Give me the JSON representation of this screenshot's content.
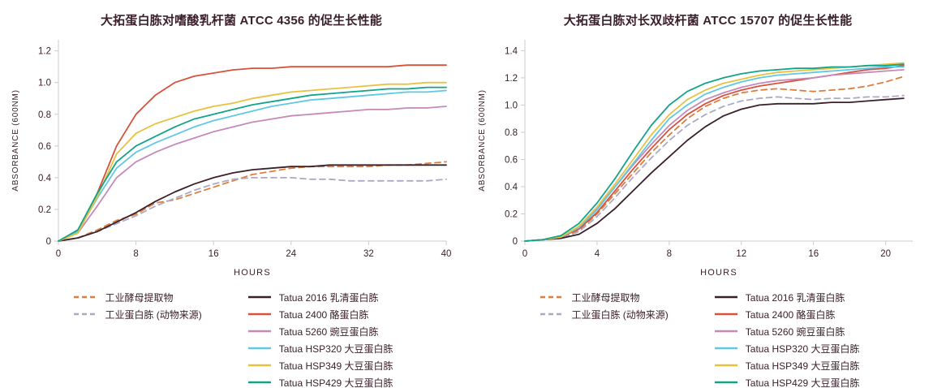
{
  "theme": {
    "background": "#ffffff",
    "text_color": "#3b202c",
    "axis_color": "#cbcbcb"
  },
  "chart_data": [
    {
      "type": "line",
      "title": "大拓蛋白胨对嗜酸乳杆菌 ATCC 4356 的促生长性能",
      "xlabel": "HOURS",
      "ylabel": "ABSORBANCE (600NM)",
      "xlim": [
        0,
        40
      ],
      "ylim": [
        0,
        1.27
      ],
      "xticks": [
        0,
        8,
        16,
        24,
        32,
        40
      ],
      "yticks": [
        0,
        0.2,
        0.4,
        0.6,
        0.8,
        1.0,
        1.2
      ],
      "grid": false,
      "legend_position": "bottom",
      "x": [
        0,
        2,
        4,
        6,
        8,
        10,
        12,
        14,
        16,
        18,
        20,
        22,
        24,
        26,
        28,
        30,
        32,
        34,
        36,
        38,
        40
      ],
      "series": [
        {
          "name": "工业酵母提取物",
          "color": "#df7e3c",
          "dash": true,
          "column": 1,
          "values": [
            0,
            0.02,
            0.07,
            0.13,
            0.17,
            0.24,
            0.26,
            0.3,
            0.34,
            0.38,
            0.42,
            0.44,
            0.46,
            0.47,
            0.47,
            0.47,
            0.47,
            0.48,
            0.48,
            0.49,
            0.5
          ]
        },
        {
          "name": "工业蛋白胨 (动物来源)",
          "color": "#aba9c6",
          "dash": true,
          "column": 1,
          "values": [
            0,
            0.02,
            0.06,
            0.11,
            0.16,
            0.22,
            0.27,
            0.32,
            0.36,
            0.39,
            0.4,
            0.4,
            0.4,
            0.39,
            0.39,
            0.38,
            0.38,
            0.38,
            0.38,
            0.38,
            0.39
          ]
        },
        {
          "name": "Tatua 2016 乳清蛋白胨",
          "color": "#3b202c",
          "dash": false,
          "column": 2,
          "values": [
            0,
            0.02,
            0.06,
            0.12,
            0.18,
            0.25,
            0.31,
            0.36,
            0.4,
            0.43,
            0.45,
            0.46,
            0.47,
            0.47,
            0.48,
            0.48,
            0.48,
            0.48,
            0.48,
            0.48,
            0.48
          ]
        },
        {
          "name": "Tatua 2400 酪蛋白胨",
          "color": "#d6523c",
          "dash": false,
          "column": 2,
          "values": [
            0,
            0.06,
            0.3,
            0.6,
            0.8,
            0.92,
            1.0,
            1.04,
            1.06,
            1.08,
            1.09,
            1.09,
            1.1,
            1.1,
            1.1,
            1.1,
            1.1,
            1.1,
            1.11,
            1.11,
            1.11
          ]
        },
        {
          "name": "Tatua 5260 豌豆蛋白胨",
          "color": "#c68ab8",
          "dash": false,
          "column": 2,
          "values": [
            0,
            0.05,
            0.22,
            0.4,
            0.5,
            0.56,
            0.61,
            0.65,
            0.69,
            0.72,
            0.75,
            0.77,
            0.79,
            0.8,
            0.81,
            0.82,
            0.83,
            0.83,
            0.84,
            0.84,
            0.85
          ]
        },
        {
          "name": "Tatua HSP320 大豆蛋白胨",
          "color": "#5ec8e5",
          "dash": false,
          "column": 2,
          "values": [
            0,
            0.06,
            0.27,
            0.46,
            0.56,
            0.62,
            0.67,
            0.72,
            0.76,
            0.79,
            0.82,
            0.85,
            0.87,
            0.89,
            0.9,
            0.91,
            0.92,
            0.93,
            0.94,
            0.94,
            0.95
          ]
        },
        {
          "name": "Tatua HSP349 大豆蛋白胨",
          "color": "#e8c23f",
          "dash": false,
          "column": 2,
          "values": [
            0,
            0.05,
            0.28,
            0.55,
            0.68,
            0.74,
            0.78,
            0.82,
            0.85,
            0.87,
            0.9,
            0.92,
            0.94,
            0.95,
            0.96,
            0.97,
            0.98,
            0.99,
            0.99,
            1.0,
            1.0
          ]
        },
        {
          "name": "Tatua HSP429 大豆蛋白胨",
          "color": "#12a48b",
          "dash": false,
          "column": 2,
          "values": [
            0,
            0.07,
            0.3,
            0.5,
            0.6,
            0.66,
            0.72,
            0.77,
            0.8,
            0.83,
            0.86,
            0.88,
            0.9,
            0.92,
            0.93,
            0.94,
            0.95,
            0.96,
            0.96,
            0.97,
            0.97
          ]
        }
      ]
    },
    {
      "type": "line",
      "title": "大拓蛋白胨对长双歧杆菌 ATCC 15707 的促生长性能",
      "xlabel": "HOURS",
      "ylabel": "ABSORBANCE (600NM)",
      "xlim": [
        0,
        21.5
      ],
      "ylim": [
        0,
        1.48
      ],
      "xticks": [
        0,
        4,
        8,
        12,
        16,
        20
      ],
      "yticks": [
        0,
        0.2,
        0.4,
        0.6,
        0.8,
        1.0,
        1.2,
        1.4
      ],
      "grid": false,
      "legend_position": "bottom",
      "x": [
        0,
        1,
        2,
        3,
        4,
        5,
        6,
        7,
        8,
        9,
        10,
        11,
        12,
        13,
        14,
        15,
        16,
        17,
        18,
        19,
        20,
        21
      ],
      "series": [
        {
          "name": "工业酵母提取物",
          "color": "#df7e3c",
          "dash": true,
          "column": 1,
          "values": [
            0,
            0.01,
            0.02,
            0.08,
            0.2,
            0.35,
            0.5,
            0.65,
            0.78,
            0.9,
            0.99,
            1.05,
            1.09,
            1.11,
            1.12,
            1.11,
            1.1,
            1.11,
            1.12,
            1.14,
            1.17,
            1.21
          ]
        },
        {
          "name": "工业蛋白胨 (动物来源)",
          "color": "#aba9c6",
          "dash": true,
          "column": 1,
          "values": [
            0,
            0.01,
            0.02,
            0.07,
            0.18,
            0.32,
            0.47,
            0.61,
            0.74,
            0.85,
            0.93,
            0.99,
            1.03,
            1.05,
            1.06,
            1.05,
            1.04,
            1.05,
            1.05,
            1.06,
            1.06,
            1.07
          ]
        },
        {
          "name": "Tatua 2016 乳清蛋白胨",
          "color": "#3b202c",
          "dash": false,
          "column": 2,
          "values": [
            0,
            0.01,
            0.02,
            0.05,
            0.13,
            0.24,
            0.37,
            0.5,
            0.62,
            0.74,
            0.84,
            0.92,
            0.97,
            1.0,
            1.01,
            1.01,
            1.01,
            1.02,
            1.02,
            1.03,
            1.04,
            1.05
          ]
        },
        {
          "name": "Tatua 2400 酪蛋白胨",
          "color": "#d6523c",
          "dash": false,
          "column": 2,
          "values": [
            0,
            0.01,
            0.03,
            0.09,
            0.21,
            0.37,
            0.53,
            0.68,
            0.82,
            0.93,
            1.01,
            1.07,
            1.11,
            1.14,
            1.16,
            1.18,
            1.2,
            1.22,
            1.24,
            1.26,
            1.27,
            1.29
          ]
        },
        {
          "name": "Tatua 5260 豌豆蛋白胨",
          "color": "#c68ab8",
          "dash": false,
          "column": 2,
          "values": [
            0,
            0.01,
            0.03,
            0.1,
            0.24,
            0.4,
            0.56,
            0.71,
            0.85,
            0.96,
            1.04,
            1.09,
            1.13,
            1.16,
            1.18,
            1.19,
            1.2,
            1.22,
            1.23,
            1.24,
            1.25,
            1.26
          ]
        },
        {
          "name": "Tatua HSP320 大豆蛋白胨",
          "color": "#5ec8e5",
          "dash": false,
          "column": 2,
          "values": [
            0,
            0.01,
            0.03,
            0.1,
            0.23,
            0.4,
            0.57,
            0.74,
            0.9,
            1.0,
            1.08,
            1.13,
            1.17,
            1.2,
            1.22,
            1.23,
            1.24,
            1.25,
            1.26,
            1.27,
            1.28,
            1.28
          ]
        },
        {
          "name": "Tatua HSP349 大豆蛋白胨",
          "color": "#e8c23f",
          "dash": false,
          "column": 2,
          "values": [
            0,
            0.01,
            0.03,
            0.11,
            0.25,
            0.42,
            0.6,
            0.78,
            0.93,
            1.04,
            1.11,
            1.16,
            1.19,
            1.22,
            1.24,
            1.25,
            1.26,
            1.27,
            1.28,
            1.29,
            1.3,
            1.31
          ]
        },
        {
          "name": "Tatua HSP429 大豆蛋白胨",
          "color": "#12a48b",
          "dash": false,
          "column": 2,
          "values": [
            0,
            0.01,
            0.04,
            0.13,
            0.28,
            0.46,
            0.66,
            0.85,
            1.0,
            1.1,
            1.16,
            1.2,
            1.23,
            1.25,
            1.26,
            1.27,
            1.27,
            1.28,
            1.28,
            1.29,
            1.29,
            1.3
          ]
        }
      ]
    }
  ]
}
